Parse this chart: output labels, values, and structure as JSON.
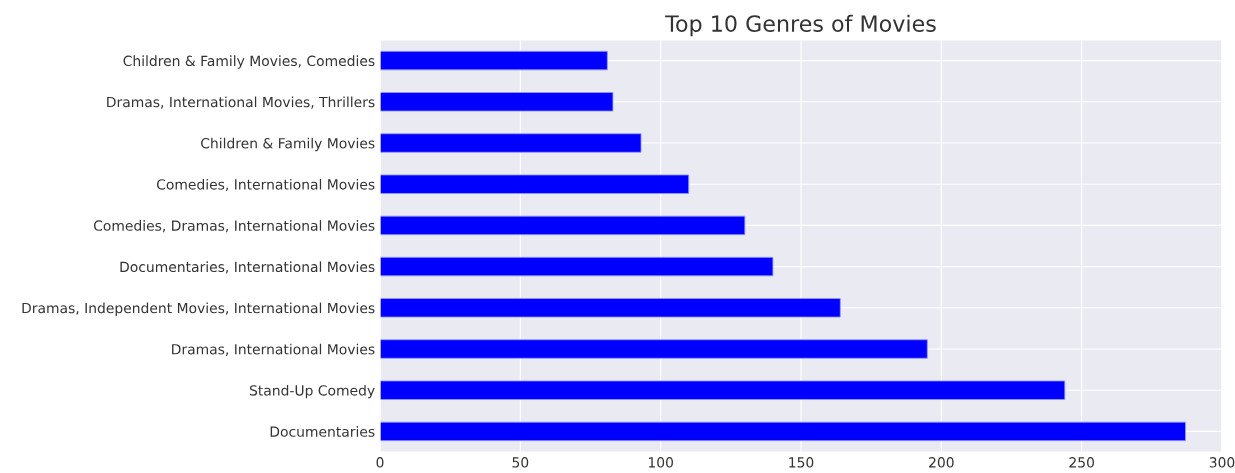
{
  "chart_data": {
    "type": "bar",
    "orientation": "horizontal",
    "title": "Top 10 Genres of Movies",
    "categories": [
      "Children & Family Movies, Comedies",
      "Dramas, International Movies, Thrillers",
      "Children & Family Movies",
      "Comedies, International Movies",
      "Comedies, Dramas, International Movies",
      "Documentaries, International Movies",
      "Dramas, Independent Movies, International Movies",
      "Dramas, International Movies",
      "Stand-Up Comedy",
      "Documentaries"
    ],
    "values": [
      81,
      83,
      93,
      110,
      130,
      140,
      164,
      195,
      244,
      287
    ],
    "color": "#0000ff",
    "xlim": [
      0,
      300
    ],
    "xticks": [
      0,
      50,
      100,
      150,
      200,
      250,
      300
    ],
    "grid": true,
    "legend": false
  }
}
